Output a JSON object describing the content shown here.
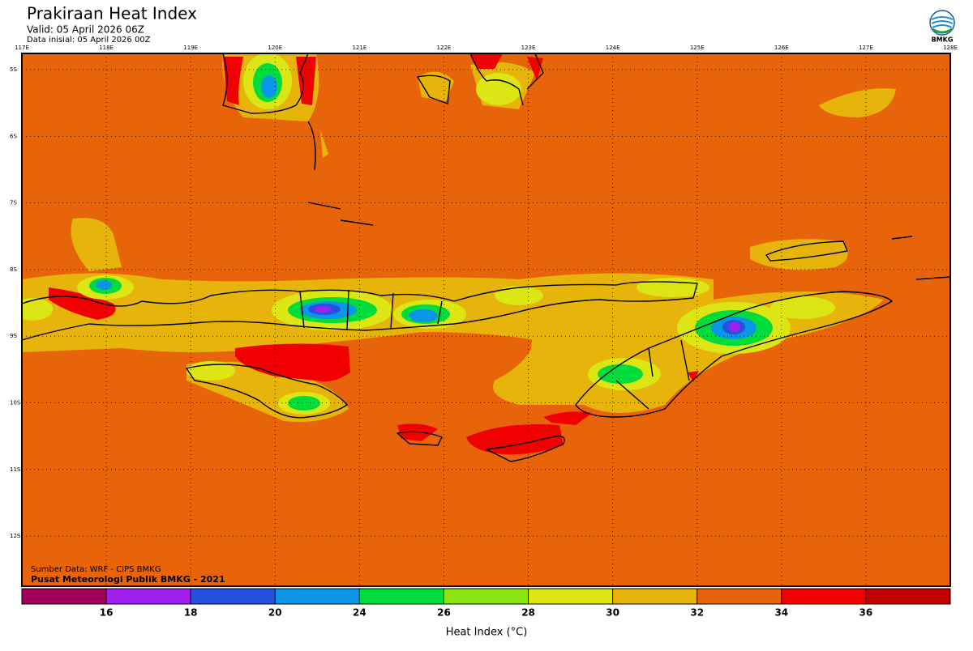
{
  "header": {
    "title": "Prakiraan Heat Index",
    "valid": "Valid: 05 April 2026 06Z",
    "init": "Data inisial: 05 April 2026 00Z",
    "logo": "BMKG"
  },
  "map": {
    "lon_labels": [
      "117E",
      "118E",
      "119E",
      "120E",
      "121E",
      "122E",
      "123E",
      "124E",
      "125E",
      "126E",
      "127E",
      "128E"
    ],
    "lat_labels": [
      "5S",
      "6S",
      "7S",
      "8S",
      "9S",
      "10S",
      "11S",
      "12S"
    ],
    "source": "Sumber Data: WRF - CIPS BMKG",
    "credit": "Pusat Meteorologi Publik BMKG - 2021"
  },
  "legend": {
    "title": "Heat Index (°C)",
    "colors": [
      "#a0005a",
      "#a020f0",
      "#2850e0",
      "#0a96e6",
      "#00dc3c",
      "#8ce614",
      "#dce614",
      "#e6b40a",
      "#e8640a",
      "#f00000",
      "#c00000"
    ],
    "ticks": [
      16,
      18,
      20,
      24,
      26,
      28,
      30,
      32,
      34,
      36
    ]
  }
}
